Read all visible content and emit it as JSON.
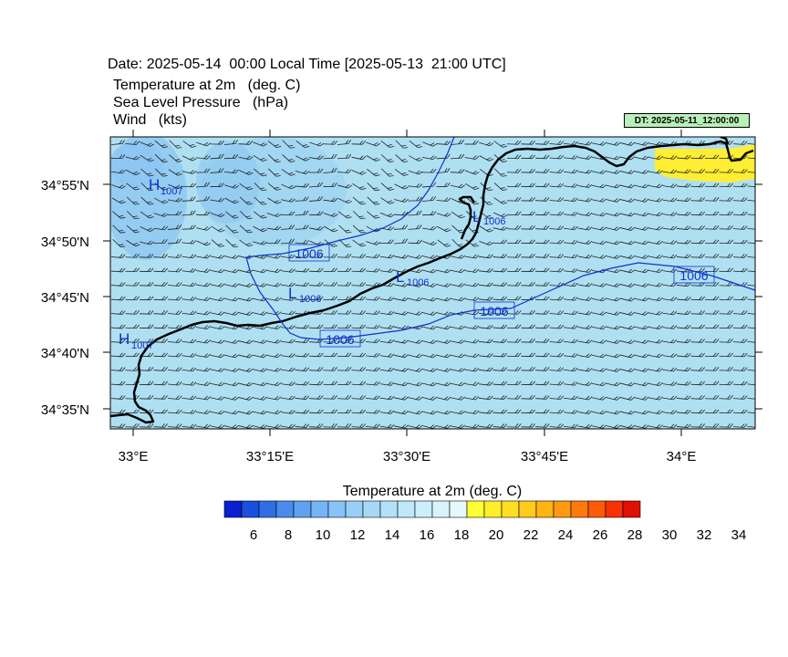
{
  "header": {
    "date_line": "Date: 2025-05-14  00:00 Local Time [2025-05-13  21:00 UTC]",
    "line1": "Temperature at 2m   (deg. C)",
    "line2": "Sea Level Pressure   (hPa)",
    "line3": "Wind   (kts)",
    "dt_badge": "DT: 2025-05-11_12:00:00"
  },
  "axes": {
    "lat_labels": [
      "34°55'N",
      "34°50'N",
      "34°45'N",
      "34°40'N",
      "34°35'N"
    ],
    "lon_labels": [
      "33°E",
      "33°15'E",
      "33°30'E",
      "33°45'E",
      "34°E"
    ]
  },
  "pressure": {
    "isobar_labels": [
      "1006",
      "1006",
      "1006",
      "1006"
    ],
    "centers": [
      {
        "type": "H",
        "value": "1007"
      },
      {
        "type": "H",
        "value": "1007"
      },
      {
        "type": "L",
        "value": "1006"
      },
      {
        "type": "L",
        "value": "1006"
      },
      {
        "type": "L",
        "value": "1006"
      }
    ]
  },
  "colorbar": {
    "title": "Temperature at 2m  (deg. C)",
    "colors": [
      "#0a1fd0",
      "#1a4fe0",
      "#2e6fe8",
      "#4a8cee",
      "#5fa2f2",
      "#74b5f5",
      "#86c3f7",
      "#97cff8",
      "#a6d9f8",
      "#b4e1f9",
      "#c1e8fa",
      "#cdeefb",
      "#d9f3fc",
      "#e6f8fd",
      "#ffff33",
      "#ffef2a",
      "#ffdf22",
      "#ffcc1a",
      "#ffb414",
      "#ff9a10",
      "#ff7a0c",
      "#ff5a08",
      "#f63205",
      "#e01002"
    ],
    "tick_labels": [
      "6",
      "8",
      "10",
      "12",
      "14",
      "16",
      "18",
      "20",
      "22",
      "24",
      "26",
      "28",
      "30",
      "32",
      "34"
    ]
  },
  "colors": {
    "sea": "#aee0f2",
    "warm_patch": "#ffee33",
    "cool_patch": "#8cc6f2",
    "isobar": "#1030d0",
    "coast": "#000000"
  }
}
